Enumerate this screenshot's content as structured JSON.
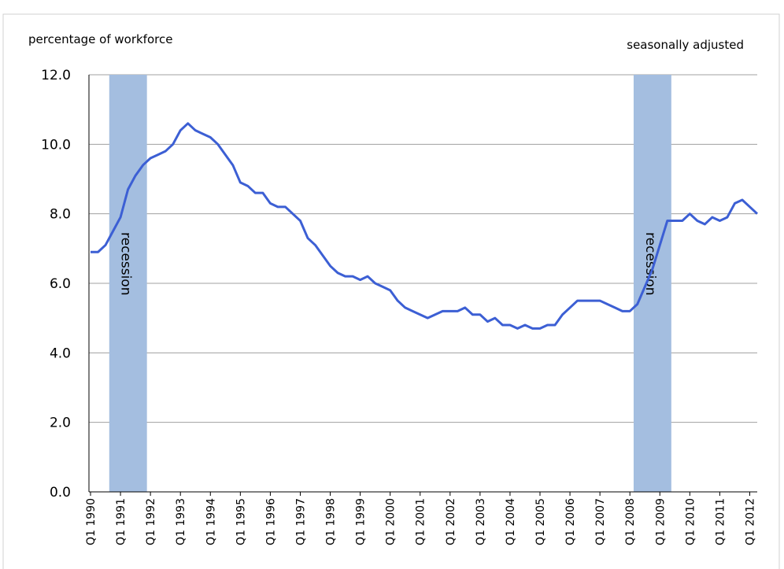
{
  "chart_data": {
    "type": "line",
    "y_axis_label": "percentage of workforce",
    "subtitle": "seasonally adjusted",
    "categories": [
      "Q1 1990",
      null,
      null,
      null,
      "Q1 1991",
      null,
      null,
      null,
      "Q1 1992",
      null,
      null,
      null,
      "Q1 1993",
      null,
      null,
      null,
      "Q1 1994",
      null,
      null,
      null,
      "Q1 1995",
      null,
      null,
      null,
      "Q1 1996",
      null,
      null,
      null,
      "Q1 1997",
      null,
      null,
      null,
      "Q1 1998",
      null,
      null,
      null,
      "Q1 1999",
      null,
      null,
      null,
      "Q1 2000",
      null,
      null,
      null,
      "Q1 2001",
      null,
      null,
      null,
      "Q1 2002",
      null,
      null,
      null,
      "Q1 2003",
      null,
      null,
      null,
      "Q1 2004",
      null,
      null,
      null,
      "Q1 2005",
      null,
      null,
      null,
      "Q1 2006",
      null,
      null,
      null,
      "Q1 2007",
      null,
      null,
      null,
      "Q1 2008",
      null,
      null,
      null,
      "Q1 2009",
      null,
      null,
      null,
      "Q1 2010",
      null,
      null,
      null,
      "Q1 2011",
      null,
      null,
      null,
      "Q1 2012",
      null
    ],
    "values": [
      6.9,
      6.9,
      7.1,
      7.5,
      7.9,
      8.7,
      9.1,
      9.4,
      9.6,
      9.7,
      9.8,
      10.0,
      10.4,
      10.6,
      10.4,
      10.3,
      10.2,
      10.0,
      9.7,
      9.4,
      8.9,
      8.8,
      8.6,
      8.6,
      8.3,
      8.2,
      8.2,
      8.0,
      7.8,
      7.3,
      7.1,
      6.8,
      6.5,
      6.3,
      6.2,
      6.2,
      6.1,
      6.2,
      6.0,
      5.9,
      5.8,
      5.5,
      5.3,
      5.2,
      5.1,
      5.0,
      5.1,
      5.2,
      5.2,
      5.2,
      5.3,
      5.1,
      5.1,
      4.9,
      5.0,
      4.8,
      4.8,
      4.7,
      4.8,
      4.7,
      4.7,
      4.8,
      4.8,
      5.1,
      5.3,
      5.5,
      5.5,
      5.5,
      5.5,
      5.4,
      5.3,
      5.2,
      5.2,
      5.4,
      5.9,
      6.4,
      7.1,
      7.8,
      7.8,
      7.8,
      8.0,
      7.8,
      7.7,
      7.9,
      7.8,
      7.9,
      8.3,
      8.4,
      8.2,
      8.0
    ],
    "color": "#3c5fd4",
    "recession_bars": {
      "color": "#a4bee0",
      "values": [
        null,
        null,
        null,
        12,
        12,
        12,
        12,
        12,
        null,
        null,
        null,
        null,
        null,
        null,
        null,
        null,
        null,
        null,
        null,
        null,
        null,
        null,
        null,
        null,
        null,
        null,
        null,
        null,
        null,
        null,
        null,
        null,
        null,
        null,
        null,
        null,
        null,
        null,
        null,
        null,
        null,
        null,
        null,
        null,
        null,
        null,
        null,
        null,
        null,
        null,
        null,
        null,
        null,
        null,
        null,
        null,
        null,
        null,
        null,
        null,
        null,
        null,
        null,
        null,
        null,
        null,
        null,
        null,
        null,
        null,
        null,
        null,
        null,
        12,
        12,
        12,
        12,
        12,
        null,
        null,
        null,
        null,
        null,
        null,
        null,
        null,
        null,
        null,
        null,
        null
      ]
    },
    "annotations": [
      "recession",
      "recession"
    ],
    "ylim": [
      0,
      12
    ],
    "yticks": [
      {
        "value": 0,
        "label": "0.0"
      },
      {
        "value": 2,
        "label": "2.0"
      },
      {
        "value": 4,
        "label": "4.0"
      },
      {
        "value": 6,
        "label": "6.0"
      },
      {
        "value": 8,
        "label": "8.0"
      },
      {
        "value": 10,
        "label": "10.0"
      },
      {
        "value": 12,
        "label": "12.0"
      }
    ],
    "grid": true
  }
}
